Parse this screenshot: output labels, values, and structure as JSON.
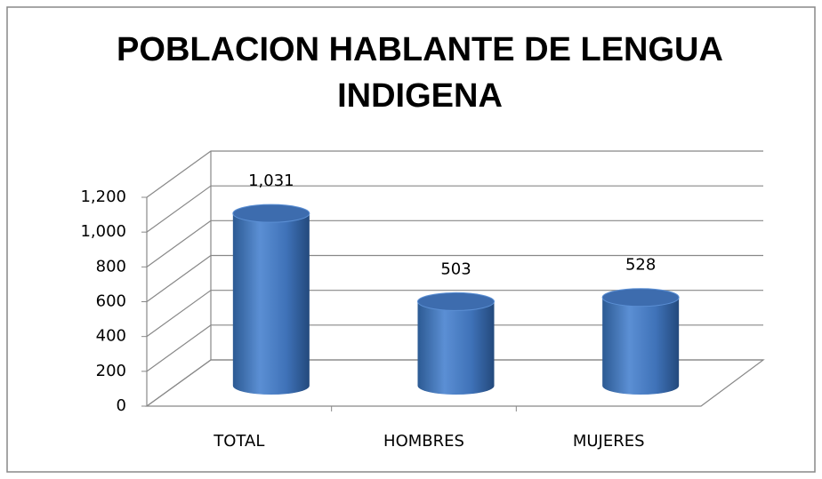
{
  "chart_data": {
    "type": "bar",
    "title": "POBLACION HABLANTE DE LENGUA INDIGENA",
    "categories": [
      "TOTAL",
      "HOMBRES",
      "MUJERES"
    ],
    "values": [
      1031,
      503,
      528
    ],
    "value_labels": [
      "1,031",
      "503",
      "528"
    ],
    "color": "#4f81bd",
    "ylim": [
      0,
      1200
    ],
    "yticks": [
      0,
      200,
      400,
      600,
      800,
      {
        "value": 1000,
        "label": "1,000"
      },
      {
        "value": 1200,
        "label": "1,200"
      }
    ],
    "grid": true
  }
}
